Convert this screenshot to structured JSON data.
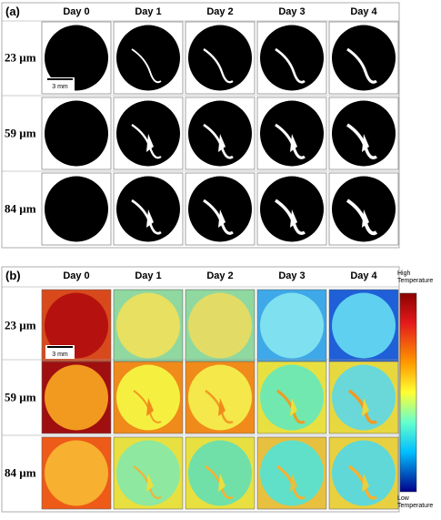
{
  "panels": [
    {
      "label": "(a)",
      "columns": [
        "Day 0",
        "Day 1",
        "Day 2",
        "Day 3",
        "Day 4"
      ],
      "rows": [
        "23 µm",
        "59 µm",
        "84 µm"
      ],
      "scale_bar": "3 mm"
    },
    {
      "label": "(b)",
      "columns": [
        "Day 0",
        "Day 1",
        "Day 2",
        "Day 3",
        "Day 4"
      ],
      "rows": [
        "23 µm",
        "59 µm",
        "84 µm"
      ],
      "scale_bar": "3 mm",
      "colorbar": {
        "high": "High Temperature",
        "low": "Low Temperature"
      }
    }
  ]
}
